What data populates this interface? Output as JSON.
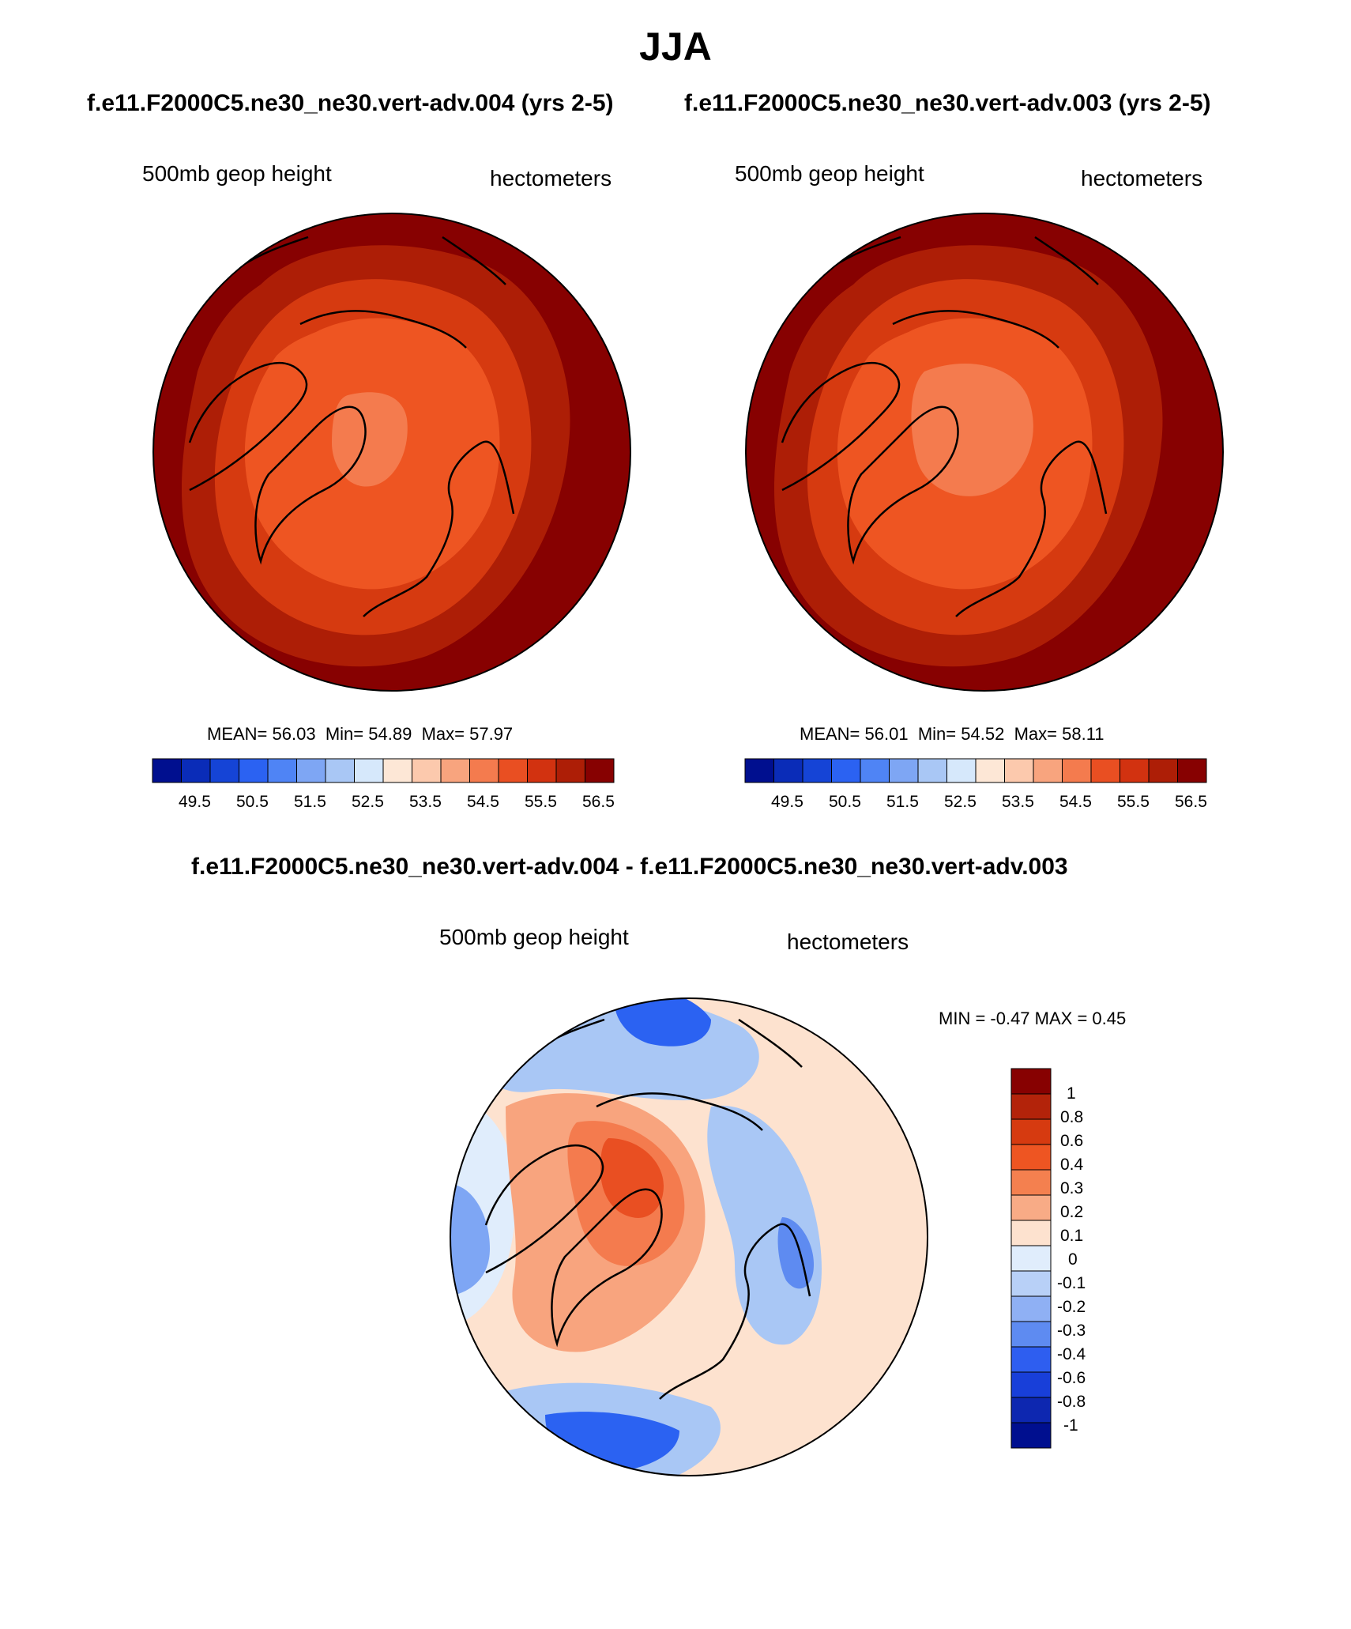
{
  "title": "JJA",
  "panels": [
    {
      "case_title": "f.e11.F2000C5.ne30_ne30.vert-adv.004 (yrs 2-5)",
      "left_label": "500mb geop height",
      "right_label": "hectometers",
      "stats": {
        "mean_label": "MEAN=",
        "mean": "56.03",
        "min_label": "Min=",
        "min": "54.89",
        "max_label": "Max=",
        "max": "57.97"
      }
    },
    {
      "case_title": "f.e11.F2000C5.ne30_ne30.vert-adv.003 (yrs 2-5)",
      "left_label": "500mb geop height",
      "right_label": "hectometers",
      "stats": {
        "mean_label": "MEAN=",
        "mean": "56.01",
        "min_label": "Min=",
        "min": "54.52",
        "max_label": "Max=",
        "max": "58.11"
      }
    }
  ],
  "diff_panel": {
    "title": "f.e11.F2000C5.ne30_ne30.vert-adv.004 - f.e11.F2000C5.ne30_ne30.vert-adv.003",
    "left_label": "500mb geop height",
    "right_label": "hectometers",
    "minmax_text": "MIN =  -0.47 MAX =   0.45"
  },
  "abs_colorbar": {
    "colors": [
      "#000f8f",
      "#0a2cb8",
      "#1544d6",
      "#2b62f2",
      "#4f84f5",
      "#7ea6f4",
      "#a9c7f5",
      "#d6e8fb",
      "#fde7d6",
      "#fcc9ad",
      "#f8a47e",
      "#f47b4e",
      "#e94f22",
      "#d23210",
      "#ad1e06",
      "#870101"
    ],
    "tick_labels": [
      "49.5",
      "50.5",
      "51.5",
      "52.5",
      "53.5",
      "54.5",
      "55.5",
      "56.5"
    ]
  },
  "diff_colorbar": {
    "colors": [
      "#870101",
      "#b3230a",
      "#d63a10",
      "#ee5522",
      "#f4804f",
      "#f8ab86",
      "#fde2cf",
      "#e0edfc",
      "#b8d0f7",
      "#8fb0f4",
      "#5e8bf1",
      "#2e5ef0",
      "#183fd9",
      "#0d27b0",
      "#000f8f"
    ],
    "tick_labels": [
      "1",
      "0.8",
      "0.6",
      "0.4",
      "0.3",
      "0.2",
      "0.1",
      "0",
      "-0.1",
      "-0.2",
      "-0.3",
      "-0.4",
      "-0.6",
      "-0.8",
      "-1"
    ]
  },
  "field_colors": {
    "abs_level_5": "#870101",
    "abs_level_4": "#ad1e06",
    "abs_level_3": "#d63a10",
    "abs_level_2": "#ee5522",
    "abs_level_1": "#f47b4e",
    "diff_pos_strong": "#e94f22",
    "diff_pos_mid": "#f47b4e",
    "diff_pos_weak": "#f8a47e",
    "diff_pos_faint": "#fde2cf",
    "diff_neg_faint": "#e0edfc",
    "diff_neg_weak": "#a9c7f5",
    "diff_neg_mid": "#7ea6f4",
    "diff_neg_strong": "#2b62f2"
  }
}
